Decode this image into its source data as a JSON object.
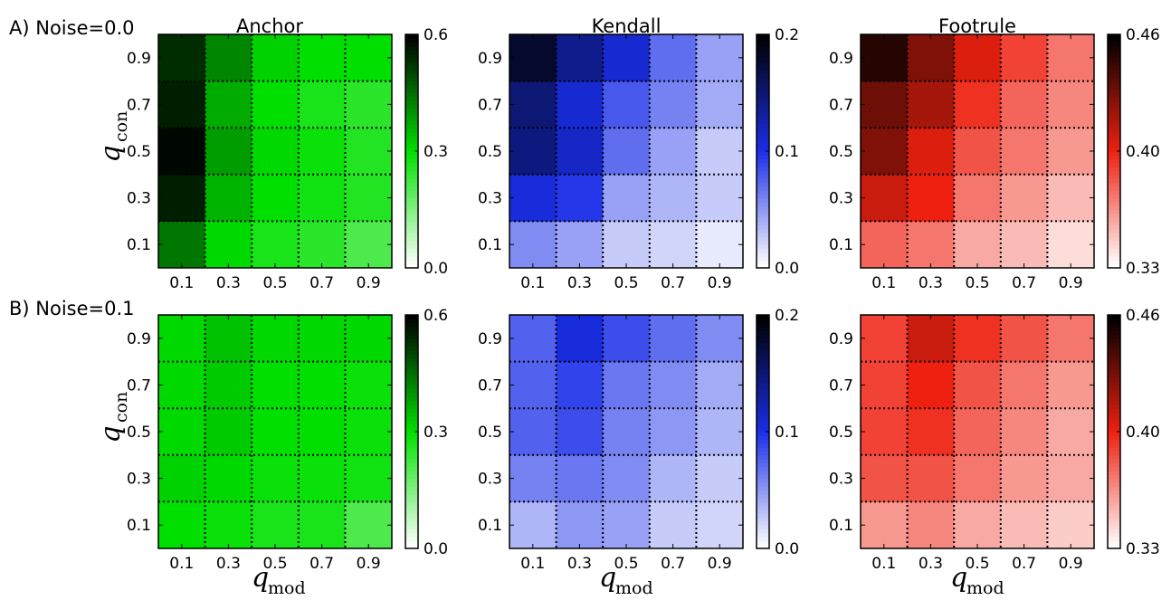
{
  "figure": {
    "rows": [
      {
        "label": "A) Noise=0.0"
      },
      {
        "label": "B) Noise=0.1"
      }
    ],
    "columns": [
      "Anchor",
      "Kendall",
      "Footrule"
    ],
    "ylabel_main": "q",
    "ylabel_sub": "con",
    "xlabel_main": "q",
    "xlabel_sub": "mod"
  },
  "chart_data": [
    {
      "type": "heatmap",
      "panel": "A-Anchor",
      "row_label": "A) Noise=0.0",
      "title": "Anchor",
      "x_ticks": [
        "0.1",
        "0.3",
        "0.5",
        "0.7",
        "0.9"
      ],
      "y_ticks": [
        "0.1",
        "0.3",
        "0.5",
        "0.7",
        "0.9"
      ],
      "colormap": "greens",
      "colormap_colors": [
        "#ffffff",
        "#00e000",
        "#000000"
      ],
      "vmin": 0.0,
      "vmax": 0.6,
      "colorbar_ticks": [
        "0.0",
        "0.3",
        "0.6"
      ],
      "values": [
        [
          0.44,
          0.31,
          0.27,
          0.25,
          0.21
        ],
        [
          0.56,
          0.36,
          0.3,
          0.28,
          0.26
        ],
        [
          0.59,
          0.39,
          0.31,
          0.29,
          0.26
        ],
        [
          0.56,
          0.37,
          0.3,
          0.27,
          0.25
        ],
        [
          0.54,
          0.42,
          0.32,
          0.3,
          0.3
        ]
      ]
    },
    {
      "type": "heatmap",
      "panel": "A-Kendall",
      "row_label": "A) Noise=0.0",
      "title": "Kendall",
      "x_ticks": [
        "0.1",
        "0.3",
        "0.5",
        "0.7",
        "0.9"
      ],
      "y_ticks": [
        "0.1",
        "0.3",
        "0.5",
        "0.7",
        "0.9"
      ],
      "colormap": "blues",
      "colormap_colors": [
        "#ffffff",
        "#1a2ee8",
        "#000000"
      ],
      "vmin": 0.0,
      "vmax": 0.2,
      "colorbar_ticks": [
        "0.0",
        "0.1",
        "0.2"
      ],
      "values": [
        [
          0.055,
          0.045,
          0.025,
          0.02,
          0.01
        ],
        [
          0.105,
          0.095,
          0.045,
          0.035,
          0.025
        ],
        [
          0.145,
          0.115,
          0.07,
          0.045,
          0.025
        ],
        [
          0.15,
          0.11,
          0.08,
          0.06,
          0.04
        ],
        [
          0.18,
          0.14,
          0.11,
          0.07,
          0.045
        ]
      ]
    },
    {
      "type": "heatmap",
      "panel": "A-Footrule",
      "row_label": "A) Noise=0.0",
      "title": "Footrule",
      "x_ticks": [
        "0.1",
        "0.3",
        "0.5",
        "0.7",
        "0.9"
      ],
      "y_ticks": [
        "0.1",
        "0.3",
        "0.5",
        "0.7",
        "0.9"
      ],
      "colormap": "reds",
      "colormap_colors": [
        "#ffffff",
        "#ee2010",
        "#000000"
      ],
      "vmin": 0.33,
      "vmax": 0.46,
      "colorbar_ticks": [
        "0.33",
        "0.40",
        "0.46"
      ],
      "values": [
        [
          0.375,
          0.37,
          0.355,
          0.35,
          0.34
        ],
        [
          0.405,
          0.395,
          0.37,
          0.36,
          0.35
        ],
        [
          0.425,
          0.4,
          0.38,
          0.37,
          0.36
        ],
        [
          0.43,
          0.415,
          0.39,
          0.375,
          0.365
        ],
        [
          0.45,
          0.425,
          0.4,
          0.385,
          0.37
        ]
      ]
    },
    {
      "type": "heatmap",
      "panel": "B-Anchor",
      "row_label": "B) Noise=0.1",
      "title": "",
      "x_ticks": [
        "0.1",
        "0.3",
        "0.5",
        "0.7",
        "0.9"
      ],
      "y_ticks": [
        "0.1",
        "0.3",
        "0.5",
        "0.7",
        "0.9"
      ],
      "colormap": "greens",
      "colormap_colors": [
        "#ffffff",
        "#00e000",
        "#000000"
      ],
      "vmin": 0.0,
      "vmax": 0.6,
      "colorbar_ticks": [
        "0.0",
        "0.3",
        "0.6"
      ],
      "values": [
        [
          0.3,
          0.29,
          0.27,
          0.27,
          0.21
        ],
        [
          0.32,
          0.31,
          0.29,
          0.29,
          0.28
        ],
        [
          0.31,
          0.33,
          0.3,
          0.3,
          0.29
        ],
        [
          0.31,
          0.33,
          0.3,
          0.3,
          0.29
        ],
        [
          0.31,
          0.34,
          0.31,
          0.31,
          0.31
        ]
      ]
    },
    {
      "type": "heatmap",
      "panel": "B-Kendall",
      "row_label": "B) Noise=0.1",
      "title": "",
      "x_ticks": [
        "0.1",
        "0.3",
        "0.5",
        "0.7",
        "0.9"
      ],
      "y_ticks": [
        "0.1",
        "0.3",
        "0.5",
        "0.7",
        "0.9"
      ],
      "colormap": "blues",
      "colormap_colors": [
        "#ffffff",
        "#1a2ee8",
        "#000000"
      ],
      "vmin": 0.0,
      "vmax": 0.2,
      "colorbar_ticks": [
        "0.0",
        "0.1",
        "0.2"
      ],
      "values": [
        [
          0.035,
          0.05,
          0.045,
          0.025,
          0.02
        ],
        [
          0.06,
          0.065,
          0.055,
          0.035,
          0.025
        ],
        [
          0.075,
          0.085,
          0.06,
          0.05,
          0.035
        ],
        [
          0.075,
          0.09,
          0.065,
          0.055,
          0.04
        ],
        [
          0.075,
          0.105,
          0.085,
          0.07,
          0.055
        ]
      ]
    },
    {
      "type": "heatmap",
      "panel": "B-Footrule",
      "row_label": "B) Noise=0.1",
      "title": "",
      "x_ticks": [
        "0.1",
        "0.3",
        "0.5",
        "0.7",
        "0.9"
      ],
      "y_ticks": [
        "0.1",
        "0.3",
        "0.5",
        "0.7",
        "0.9"
      ],
      "colormap": "reds",
      "colormap_colors": [
        "#ffffff",
        "#ee2010",
        "#000000"
      ],
      "vmin": 0.33,
      "vmax": 0.46,
      "colorbar_ticks": [
        "0.33",
        "0.40",
        "0.46"
      ],
      "values": [
        [
          0.36,
          0.365,
          0.355,
          0.35,
          0.345
        ],
        [
          0.38,
          0.38,
          0.37,
          0.36,
          0.355
        ],
        [
          0.385,
          0.39,
          0.375,
          0.365,
          0.355
        ],
        [
          0.385,
          0.395,
          0.38,
          0.37,
          0.36
        ],
        [
          0.385,
          0.405,
          0.39,
          0.38,
          0.37
        ]
      ]
    }
  ]
}
